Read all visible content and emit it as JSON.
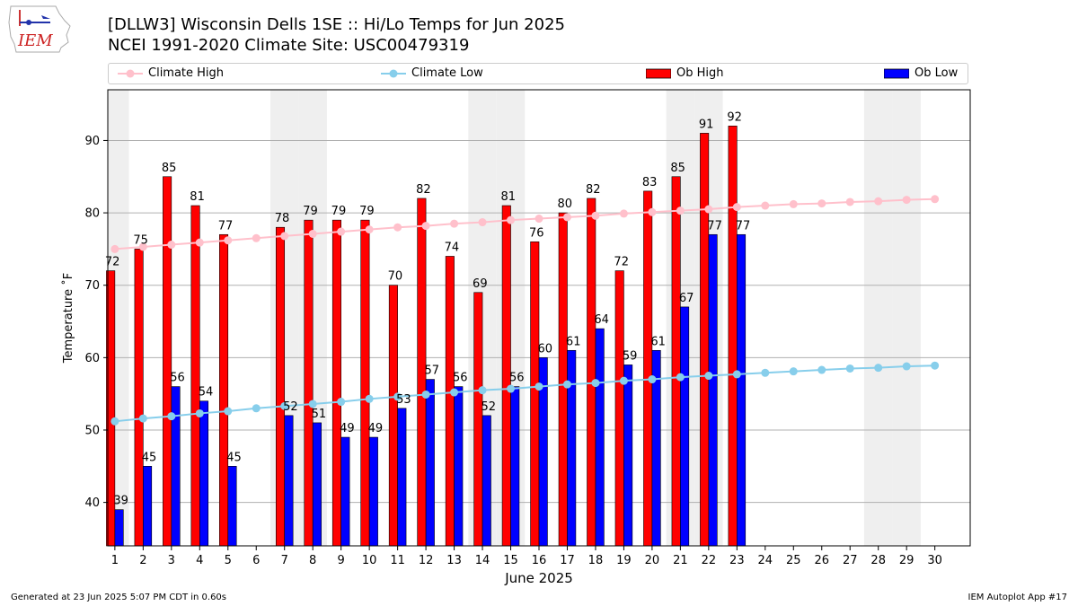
{
  "header": {
    "title_line1": "[DLLW3] Wisconsin Dells 1SE :: Hi/Lo Temps for Jun 2025",
    "title_line2": "NCEI 1991-2020 Climate Site: USC00479319",
    "logo_text": "IEM"
  },
  "footer": {
    "generated": "Generated at 23 Jun 2025 5:07 PM CDT in 0.60s",
    "app": "IEM Autoplot App #17"
  },
  "chart_data": {
    "type": "bar",
    "xlabel": "June 2025",
    "ylabel": "Temperature ˚F",
    "ylim": [
      34,
      97
    ],
    "yticks": [
      40,
      50,
      60,
      70,
      80,
      90
    ],
    "grid": true,
    "legend_placement": "top",
    "weekend_shaded_days": [
      1,
      7,
      8,
      14,
      15,
      21,
      22,
      28,
      29
    ],
    "days": [
      1,
      2,
      3,
      4,
      5,
      6,
      7,
      8,
      9,
      10,
      11,
      12,
      13,
      14,
      15,
      16,
      17,
      18,
      19,
      20,
      21,
      22,
      23,
      24,
      25,
      26,
      27,
      28,
      29,
      30
    ],
    "series": [
      {
        "name": "Climate High",
        "kind": "line",
        "color": "#ffc0cb",
        "values": [
          75.0,
          75.3,
          75.6,
          75.9,
          76.2,
          76.5,
          76.8,
          77.1,
          77.4,
          77.7,
          78.0,
          78.2,
          78.5,
          78.7,
          79.0,
          79.2,
          79.4,
          79.6,
          79.9,
          80.1,
          80.3,
          80.5,
          80.8,
          81.0,
          81.2,
          81.3,
          81.5,
          81.6,
          81.8,
          81.9
        ]
      },
      {
        "name": "Climate Low",
        "kind": "line",
        "color": "#87ceeb",
        "values": [
          51.2,
          51.6,
          51.9,
          52.3,
          52.6,
          53.0,
          53.3,
          53.6,
          53.9,
          54.3,
          54.6,
          54.9,
          55.2,
          55.5,
          55.7,
          56.0,
          56.3,
          56.5,
          56.8,
          57.0,
          57.3,
          57.5,
          57.7,
          57.9,
          58.1,
          58.3,
          58.5,
          58.6,
          58.8,
          58.9
        ]
      },
      {
        "name": "Ob High",
        "kind": "bar",
        "color": "#ff0000",
        "values": [
          72,
          75,
          85,
          81,
          77,
          null,
          78,
          79,
          79,
          79,
          70,
          82,
          74,
          69,
          81,
          76,
          80,
          82,
          72,
          83,
          85,
          91,
          92,
          null,
          null,
          null,
          null,
          null,
          null,
          null
        ]
      },
      {
        "name": "Ob Low",
        "kind": "bar",
        "color": "#0000ff",
        "values": [
          39,
          45,
          56,
          54,
          45,
          null,
          52,
          51,
          49,
          49,
          53,
          57,
          56,
          52,
          56,
          60,
          61,
          64,
          59,
          61,
          67,
          77,
          77,
          null,
          null,
          null,
          null,
          null,
          null,
          null
        ]
      }
    ]
  }
}
